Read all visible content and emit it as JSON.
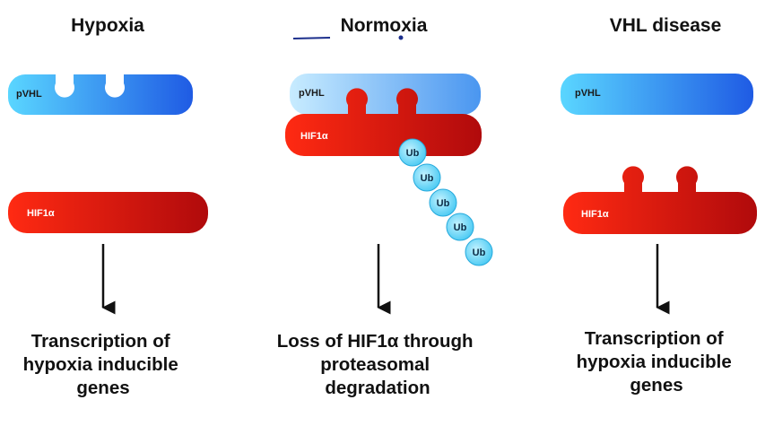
{
  "columns": [
    {
      "title": "Hypoxia",
      "pvhl_label": "pVHL",
      "hif_label": "HIF1α",
      "outcome": [
        "Transcription of",
        "hypoxia inducible",
        "genes"
      ]
    },
    {
      "title": "Normoxia",
      "pvhl_label": "pVHL",
      "hif_label": "HIF1α",
      "ub_labels": [
        "Ub",
        "Ub",
        "Ub",
        "Ub",
        "Ub"
      ],
      "outcome": [
        "Loss of HIF1α through",
        "proteasomal",
        "degradation"
      ]
    },
    {
      "title": "VHL disease",
      "pvhl_label": "pVHL",
      "hif_label": "HIF1α",
      "outcome": [
        "Transcription of",
        "hypoxia inducible",
        "genes"
      ]
    }
  ],
  "colors": {
    "pvhl_light": "#5cd0ff",
    "pvhl_dark": "#1a5fe0",
    "hif_light": "#ff2a10",
    "hif_dark": "#b00a0a",
    "ub_fill": "#66dcff"
  }
}
